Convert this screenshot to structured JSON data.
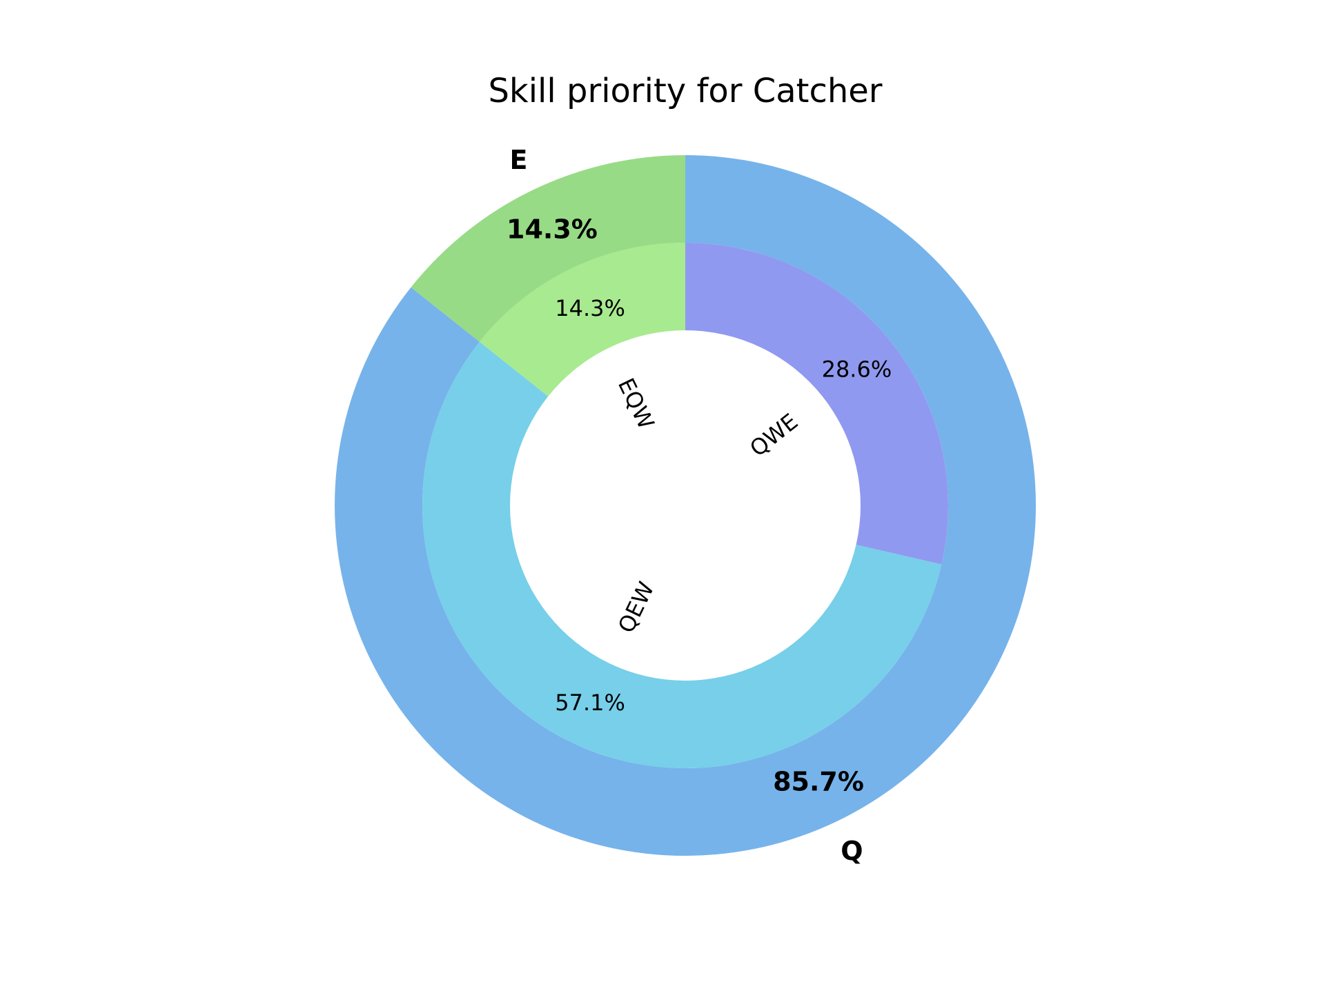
{
  "chart_data": {
    "type": "pie",
    "title": "Skill priority for Catcher",
    "outer_ring": {
      "slices": [
        {
          "label": "Q",
          "value": 85.7,
          "pct_text": "85.7%",
          "color": "#76b3ea"
        },
        {
          "label": "E",
          "value": 14.3,
          "pct_text": "14.3%",
          "color": "#98db86"
        }
      ]
    },
    "inner_ring": {
      "slices": [
        {
          "label": "QWE",
          "value": 28.6,
          "pct_text": "28.6%",
          "color": "#9099f0"
        },
        {
          "label": "QEW",
          "value": 57.1,
          "pct_text": "57.1%",
          "color": "#77cfe9"
        },
        {
          "label": "EQW",
          "value": 14.3,
          "pct_text": "14.3%",
          "color": "#a8ea90"
        }
      ]
    },
    "start_angle_deg": 90,
    "direction": "clockwise"
  }
}
